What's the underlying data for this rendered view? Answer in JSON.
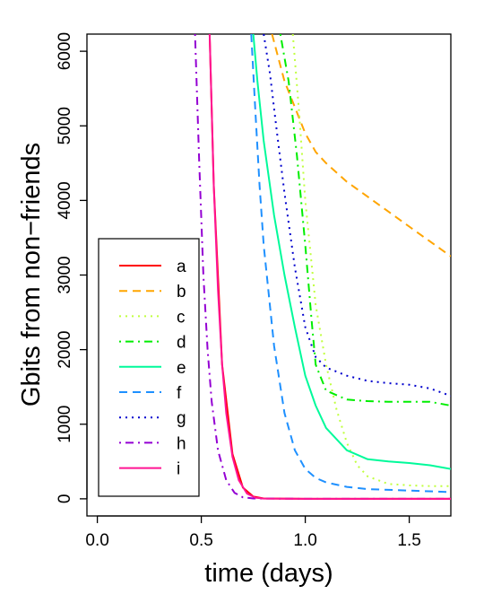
{
  "chart_data": {
    "type": "line",
    "xlabel": "time (days)",
    "ylabel": "Gbits from non−friends",
    "xlim": [
      -0.05,
      1.7
    ],
    "ylim": [
      -230,
      6230
    ],
    "xticks": [
      0.0,
      0.5,
      1.0,
      1.5
    ],
    "xtick_labels": [
      "0.0",
      "0.5",
      "1.0",
      "1.5"
    ],
    "yticks": [
      0,
      1000,
      2000,
      3000,
      4000,
      5000,
      6000
    ],
    "ytick_labels": [
      "0",
      "1000",
      "2000",
      "3000",
      "4000",
      "5000",
      "6000"
    ],
    "grid": false,
    "legend_position": "bottom-left",
    "series": [
      {
        "name": "a",
        "color": "#ff0000",
        "dash": "solid",
        "x": [
          0.54,
          0.56,
          0.6,
          0.65,
          0.7,
          0.75,
          0.8,
          1.0,
          1.7
        ],
        "y": [
          6230,
          4200,
          1800,
          600,
          150,
          30,
          5,
          0,
          0
        ]
      },
      {
        "name": "b",
        "color": "#ffa500",
        "dash": "dashed",
        "x": [
          0.84,
          0.9,
          1.0,
          1.05,
          1.1,
          1.2,
          1.3,
          1.4,
          1.5,
          1.6,
          1.7
        ],
        "y": [
          6230,
          5600,
          4900,
          4650,
          4500,
          4250,
          4050,
          3850,
          3650,
          3450,
          3250
        ]
      },
      {
        "name": "c",
        "color": "#c0ff3e",
        "dash": "dotted",
        "x": [
          0.94,
          0.97,
          1.0,
          1.05,
          1.1,
          1.15,
          1.2,
          1.25,
          1.3,
          1.4,
          1.5,
          1.6,
          1.7
        ],
        "y": [
          6230,
          5200,
          4000,
          2600,
          1800,
          1200,
          750,
          450,
          300,
          200,
          180,
          170,
          170
        ]
      },
      {
        "name": "d",
        "color": "#00ee00",
        "dash": "dashdot",
        "x": [
          0.88,
          0.92,
          0.96,
          1.0,
          1.03,
          1.05,
          1.1,
          1.2,
          1.3,
          1.4,
          1.5,
          1.6,
          1.7
        ],
        "y": [
          6230,
          5600,
          4600,
          3400,
          2400,
          1800,
          1450,
          1330,
          1310,
          1300,
          1300,
          1300,
          1250
        ]
      },
      {
        "name": "e",
        "color": "#00fa9a",
        "dash": "solid",
        "x": [
          0.75,
          0.77,
          0.8,
          0.85,
          0.9,
          0.95,
          1.0,
          1.05,
          1.1,
          1.2,
          1.3,
          1.4,
          1.5,
          1.6,
          1.7
        ],
        "y": [
          6230,
          5600,
          4800,
          3800,
          3000,
          2300,
          1650,
          1250,
          950,
          650,
          530,
          500,
          480,
          450,
          400
        ]
      },
      {
        "name": "f",
        "color": "#1e90ff",
        "dash": "dashed",
        "x": [
          0.74,
          0.76,
          0.78,
          0.8,
          0.85,
          0.9,
          0.95,
          1.0,
          1.05,
          1.1,
          1.2,
          1.3,
          1.5,
          1.7
        ],
        "y": [
          6230,
          5200,
          4200,
          3400,
          2050,
          1150,
          650,
          400,
          280,
          220,
          160,
          130,
          110,
          90
        ]
      },
      {
        "name": "g",
        "color": "#0000cd",
        "dash": "dotted",
        "x": [
          0.8,
          0.83,
          0.86,
          0.9,
          0.95,
          1.0,
          1.05,
          1.1,
          1.2,
          1.3,
          1.4,
          1.5,
          1.6,
          1.7
        ],
        "y": [
          6230,
          5700,
          5000,
          4100,
          3100,
          2300,
          1900,
          1760,
          1650,
          1580,
          1550,
          1530,
          1480,
          1380
        ]
      },
      {
        "name": "h",
        "color": "#9400d3",
        "dash": "dashdot",
        "x": [
          0.47,
          0.49,
          0.51,
          0.53,
          0.55,
          0.58,
          0.62,
          0.66,
          0.7,
          0.75,
          1.0,
          1.7
        ],
        "y": [
          6230,
          4500,
          3000,
          2000,
          1300,
          650,
          250,
          80,
          20,
          5,
          0,
          0
        ]
      },
      {
        "name": "i",
        "color": "#ff1493",
        "dash": "solid",
        "x": [
          0.54,
          0.56,
          0.58,
          0.6,
          0.62,
          0.65,
          0.68,
          0.72,
          0.76,
          0.8,
          1.0,
          1.7
        ],
        "y": [
          6230,
          4200,
          2800,
          1800,
          1150,
          560,
          250,
          70,
          15,
          3,
          0,
          0
        ]
      }
    ]
  }
}
